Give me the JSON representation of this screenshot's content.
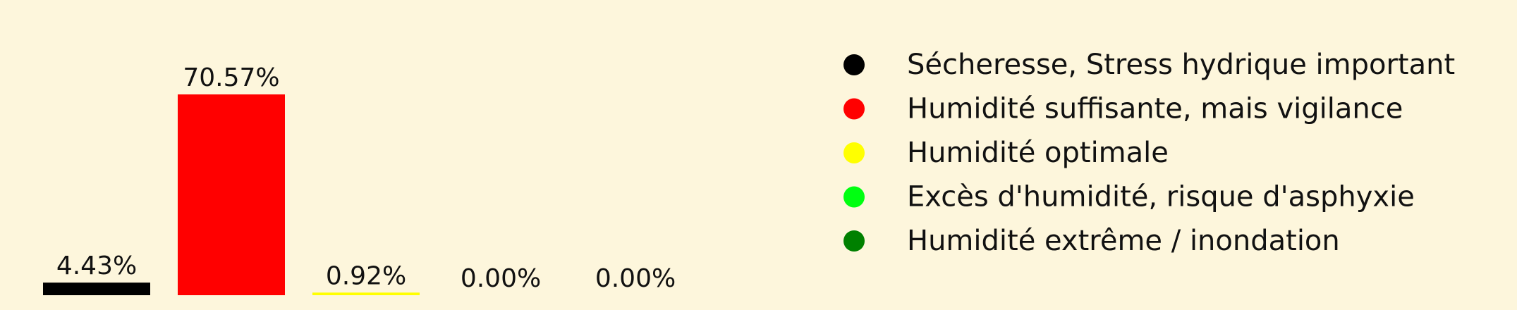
{
  "colors": {
    "background": "#fdf6dc",
    "text": "#111111"
  },
  "chart_data": {
    "type": "bar",
    "categories": [
      "Sécheresse, Stress hydrique important",
      "Humidité suffisante, mais vigilance",
      "Humidité optimale",
      "Excès d'humidité, risque d'asphyxie",
      "Humidité extrême / inondation"
    ],
    "values": [
      4.43,
      70.57,
      0.92,
      0.0,
      0.0
    ],
    "value_labels": [
      "4.43%",
      "70.57%",
      "0.92%",
      "0.00%",
      "0.00%"
    ],
    "colors": [
      "#000000",
      "#ff0000",
      "#ffff00",
      "#00ff11",
      "#008000"
    ],
    "ylim": [
      0,
      100
    ],
    "grid": false,
    "legend": {
      "placement": "right",
      "entries": [
        {
          "label": "Sécheresse, Stress hydrique important",
          "color": "#000000"
        },
        {
          "label": "Humidité suffisante, mais vigilance",
          "color": "#ff0000"
        },
        {
          "label": "Humidité optimale",
          "color": "#ffff00"
        },
        {
          "label": "Excès d'humidité, risque d'asphyxie",
          "color": "#00ff11"
        },
        {
          "label": "Humidité extrême / inondation",
          "color": "#008000"
        }
      ]
    }
  }
}
